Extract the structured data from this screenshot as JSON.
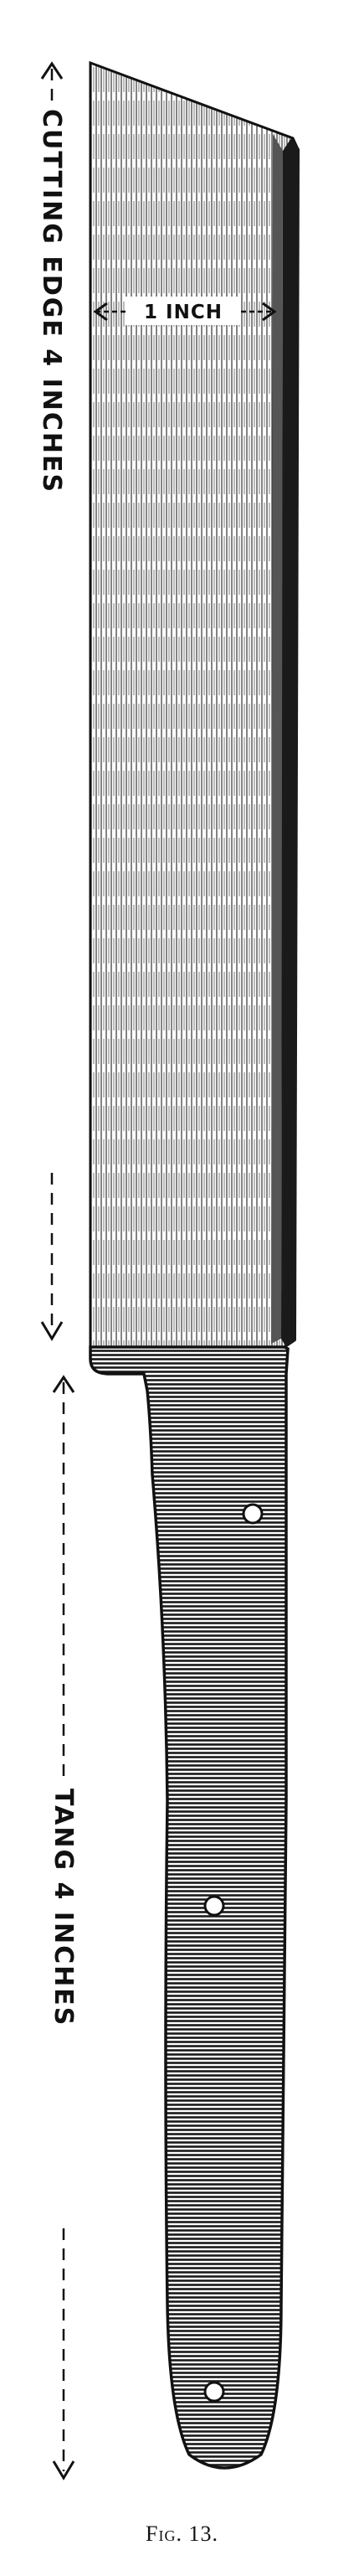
{
  "figure": {
    "blade_dimension_label": "CUTTING EDGE 4 INCHES",
    "tang_dimension_label": "TANG 4 INCHES",
    "width_dimension_label": "1 INCH",
    "caption": "Fig. 13."
  },
  "colors": {
    "ink": "#111111",
    "paper": "#ffffff"
  }
}
